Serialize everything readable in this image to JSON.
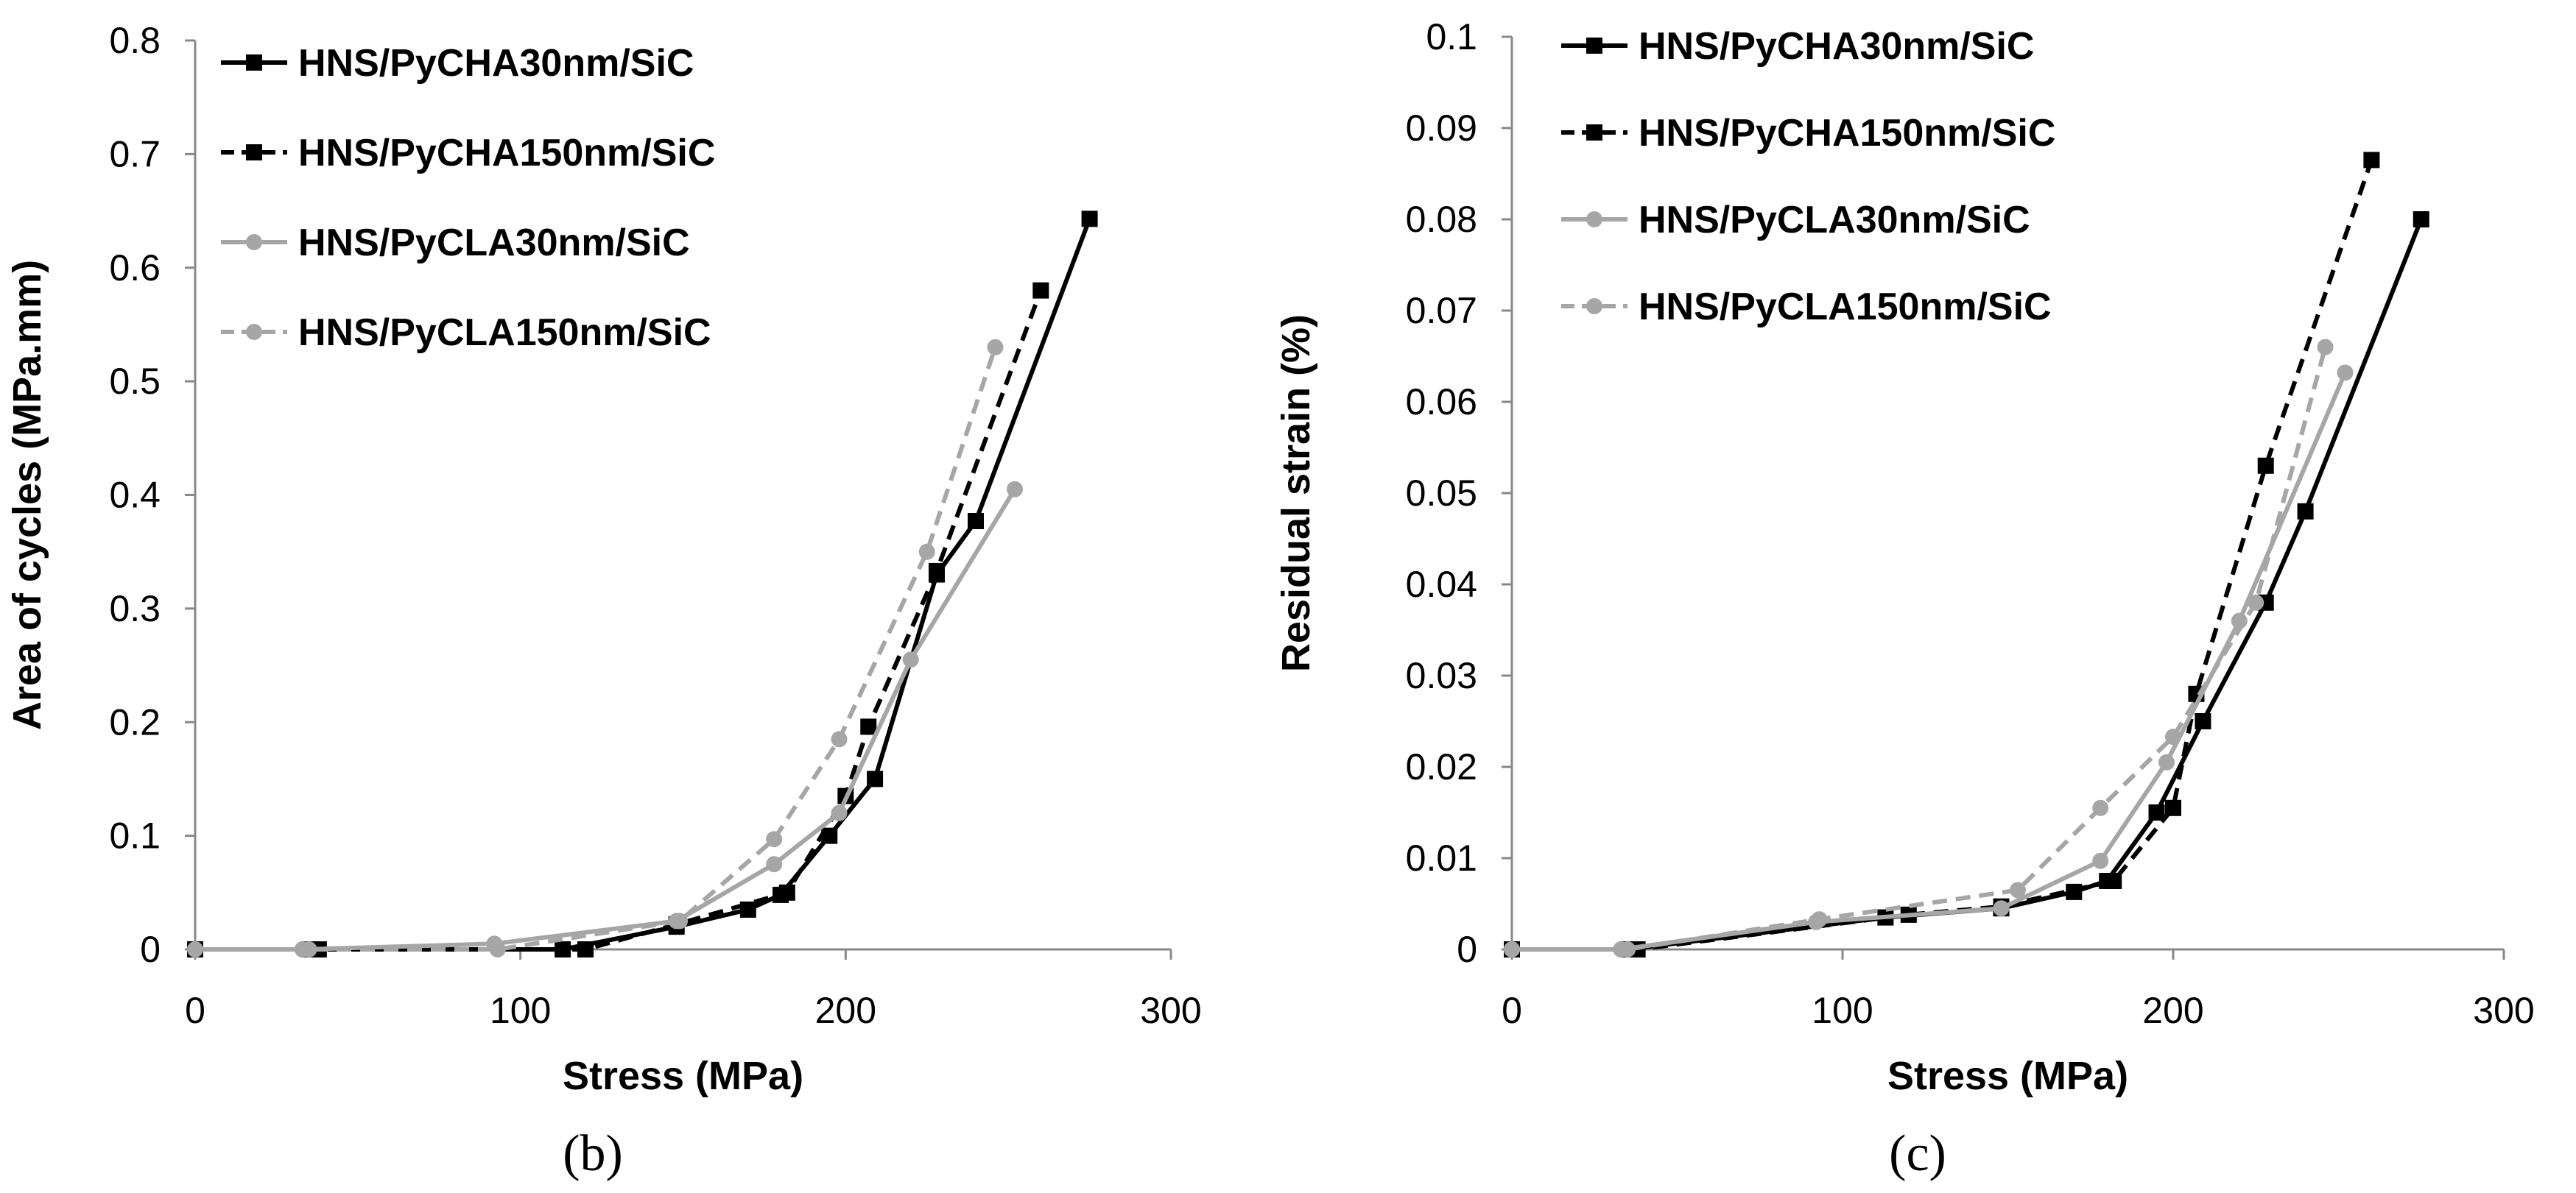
{
  "chart_data": [
    {
      "type": "line",
      "panel_label": "(b)",
      "xlabel": "Stress (MPa)",
      "ylabel": "Area of cycles (MPa.mm)",
      "xlim": [
        0,
        300
      ],
      "ylim": [
        0,
        0.8
      ],
      "xticks": [
        "0",
        "100",
        "200",
        "300"
      ],
      "yticks": [
        "0",
        "0.1",
        "0.2",
        "0.3",
        "0.4",
        "0.5",
        "0.6",
        "0.7",
        "0.8"
      ],
      "legend_position": "top-left",
      "series": [
        {
          "name": "HNS/PyCHA30nm/SiC",
          "color": "#000000",
          "dash": "solid",
          "marker": "square",
          "x": [
            0,
            35,
            113,
            148,
            170,
            180,
            195,
            209,
            228,
            240,
            275
          ],
          "y": [
            0,
            0,
            0,
            0.02,
            0.035,
            0.048,
            0.1,
            0.15,
            0.33,
            0.377,
            0.643
          ]
        },
        {
          "name": "HNS/PyCHA150nm/SiC",
          "color": "#000000",
          "dash": "dashed",
          "marker": "square",
          "x": [
            0,
            38,
            120,
            148,
            182,
            200,
            207,
            228,
            260
          ],
          "y": [
            0,
            0,
            0,
            0.022,
            0.05,
            0.135,
            0.196,
            0.333,
            0.58
          ]
        },
        {
          "name": "HNS/PyCLA30nm/SiC",
          "color": "#a6a6a6",
          "dash": "solid",
          "marker": "circle",
          "x": [
            0,
            33,
            92,
            148,
            178,
            198,
            220,
            252
          ],
          "y": [
            0,
            0,
            0.005,
            0.025,
            0.075,
            0.12,
            0.255,
            0.405
          ]
        },
        {
          "name": "HNS/PyCLA150nm/SiC",
          "color": "#a6a6a6",
          "dash": "dashed",
          "marker": "circle",
          "x": [
            0,
            35,
            93,
            149,
            178,
            198,
            225,
            246
          ],
          "y": [
            0,
            0,
            0,
            0.025,
            0.097,
            0.185,
            0.35,
            0.53
          ]
        }
      ]
    },
    {
      "type": "line",
      "panel_label": "(c)",
      "xlabel": "Stress (MPa)",
      "ylabel": "Residual strain (%)",
      "xlim": [
        0,
        300
      ],
      "ylim": [
        0,
        0.1
      ],
      "xticks": [
        "0",
        "100",
        "200",
        "300"
      ],
      "yticks": [
        "0",
        "0.01",
        "0.02",
        "0.03",
        "0.04",
        "0.05",
        "0.06",
        "0.07",
        "0.08",
        "0.09",
        "0.1"
      ],
      "legend_position": "top-left",
      "series": [
        {
          "name": "HNS/PyCHA30nm/SiC",
          "color": "#000000",
          "dash": "solid",
          "marker": "square",
          "x": [
            0,
            35,
            113,
            148,
            170,
            180,
            195,
            209,
            228,
            240,
            275
          ],
          "y": [
            0,
            0,
            0.0035,
            0.0045,
            0.0063,
            0.0075,
            0.015,
            0.025,
            0.038,
            0.048,
            0.08
          ]
        },
        {
          "name": "HNS/PyCHA150nm/SiC",
          "color": "#000000",
          "dash": "dashed",
          "marker": "square",
          "x": [
            0,
            38,
            120,
            148,
            182,
            200,
            207,
            228,
            260
          ],
          "y": [
            0,
            0,
            0.0038,
            0.0047,
            0.0075,
            0.0155,
            0.028,
            0.053,
            0.0865
          ]
        },
        {
          "name": "HNS/PyCLA30nm/SiC",
          "color": "#a6a6a6",
          "dash": "solid",
          "marker": "circle",
          "x": [
            0,
            33,
            92,
            148,
            178,
            198,
            220,
            252
          ],
          "y": [
            0,
            0,
            0.003,
            0.0045,
            0.0097,
            0.0205,
            0.036,
            0.0632
          ]
        },
        {
          "name": "HNS/PyCLA150nm/SiC",
          "color": "#a6a6a6",
          "dash": "dashed",
          "marker": "circle",
          "x": [
            0,
            35,
            93,
            153,
            178,
            200,
            225,
            246
          ],
          "y": [
            0,
            0,
            0.0033,
            0.0065,
            0.0155,
            0.0233,
            0.038,
            0.066
          ]
        }
      ]
    }
  ]
}
